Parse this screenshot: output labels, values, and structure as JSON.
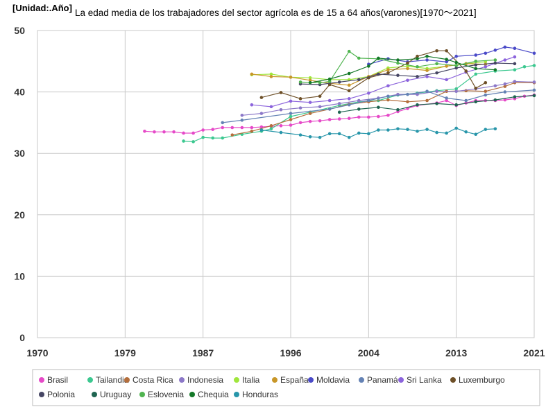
{
  "chart_data": {
    "type": "line",
    "unit_label": "[Unidad:.Año]",
    "title": "La edad media de los trabajadores del sector agrícola es de 15 a 64 años(varones)[1970〜2021]",
    "xlim": [
      1970,
      2021
    ],
    "ylim": [
      0,
      50
    ],
    "x_ticks": [
      1970,
      1979,
      1987,
      1996,
      2004,
      2013,
      2021
    ],
    "y_ticks": [
      0,
      10,
      20,
      30,
      40,
      50
    ],
    "grid": true,
    "legend_position": "bottom",
    "series": [
      {
        "name": "Brasil",
        "color": "#e64ac8",
        "points": [
          [
            1981,
            33.6
          ],
          [
            1982,
            33.5
          ],
          [
            1983,
            33.5
          ],
          [
            1984,
            33.5
          ],
          [
            1985,
            33.3
          ],
          [
            1986,
            33.3
          ],
          [
            1987,
            33.8
          ],
          [
            1988,
            33.9
          ],
          [
            1989,
            34.2
          ],
          [
            1990,
            34.2
          ],
          [
            1991,
            34.2
          ],
          [
            1992,
            34.2
          ],
          [
            1993,
            34.3
          ],
          [
            1994,
            34.4
          ],
          [
            1995,
            34.5
          ],
          [
            1996,
            34.6
          ],
          [
            1997,
            35.0
          ],
          [
            1998,
            35.2
          ],
          [
            1999,
            35.3
          ],
          [
            2000,
            35.5
          ],
          [
            2001,
            35.6
          ],
          [
            2002,
            35.7
          ],
          [
            2003,
            35.9
          ],
          [
            2004,
            35.9
          ],
          [
            2005,
            36.0
          ],
          [
            2006,
            36.2
          ],
          [
            2007,
            36.8
          ],
          [
            2008,
            37.3
          ],
          [
            2009,
            37.8
          ],
          [
            2011,
            38.2
          ],
          [
            2012,
            38.6
          ],
          [
            2013,
            37.8
          ],
          [
            2014,
            38.2
          ],
          [
            2015,
            38.6
          ],
          [
            2016,
            38.6
          ],
          [
            2017,
            38.6
          ],
          [
            2018,
            38.7
          ],
          [
            2019,
            38.9
          ],
          [
            2020,
            39.3
          ],
          [
            2021,
            39.5
          ]
        ]
      },
      {
        "name": "Tailandia",
        "color": "#3cc890",
        "points": [
          [
            1985,
            32.0
          ],
          [
            1986,
            31.9
          ],
          [
            1987,
            32.6
          ],
          [
            1988,
            32.5
          ],
          [
            1989,
            32.5
          ],
          [
            1991,
            33.1
          ],
          [
            1993,
            33.6
          ],
          [
            1994,
            34.0
          ],
          [
            1996,
            36.0
          ],
          [
            1998,
            36.7
          ],
          [
            2001,
            37.8
          ],
          [
            2003,
            38.4
          ],
          [
            2005,
            38.6
          ],
          [
            2007,
            39.5
          ],
          [
            2009,
            39.8
          ],
          [
            2011,
            40.2
          ],
          [
            2013,
            40.5
          ],
          [
            2015,
            42.9
          ],
          [
            2017,
            43.4
          ],
          [
            2019,
            43.6
          ],
          [
            2020,
            44.1
          ],
          [
            2021,
            44.3
          ]
        ]
      },
      {
        "name": "Costa Rica",
        "color": "#b46e3c",
        "points": [
          [
            1990,
            33.0
          ],
          [
            1992,
            33.6
          ],
          [
            1994,
            34.5
          ],
          [
            1996,
            35.5
          ],
          [
            1998,
            36.5
          ],
          [
            2000,
            37.2
          ],
          [
            2002,
            38.0
          ],
          [
            2004,
            38.4
          ],
          [
            2006,
            38.7
          ],
          [
            2008,
            38.4
          ],
          [
            2010,
            38.6
          ],
          [
            2012,
            40.1
          ],
          [
            2014,
            40.2
          ],
          [
            2016,
            40.1
          ],
          [
            2018,
            40.9
          ],
          [
            2019,
            41.5
          ],
          [
            2021,
            41.5
          ]
        ]
      },
      {
        "name": "Indonesia",
        "color": "#8c78c8",
        "points": [
          [
            1991,
            36.2
          ],
          [
            1993,
            36.5
          ],
          [
            1995,
            37.1
          ],
          [
            1997,
            37.4
          ],
          [
            1999,
            37.6
          ],
          [
            2001,
            38.1
          ],
          [
            2003,
            38.6
          ],
          [
            2005,
            39.0
          ],
          [
            2007,
            39.6
          ],
          [
            2009,
            39.6
          ],
          [
            2011,
            40.1
          ],
          [
            2013,
            40.1
          ],
          [
            2015,
            40.5
          ],
          [
            2017,
            41.0
          ],
          [
            2018,
            41.3
          ],
          [
            2019,
            41.7
          ],
          [
            2021,
            41.6
          ]
        ]
      },
      {
        "name": "Italia",
        "color": "#a0e63c",
        "points": [
          [
            1992,
            42.8
          ],
          [
            1994,
            42.9
          ],
          [
            1996,
            42.4
          ],
          [
            1998,
            42.3
          ],
          [
            2000,
            42.0
          ],
          [
            2002,
            42.0
          ],
          [
            2004,
            42.5
          ],
          [
            2006,
            43.9
          ],
          [
            2008,
            44.2
          ],
          [
            2010,
            43.8
          ],
          [
            2012,
            44.2
          ],
          [
            2014,
            44.6
          ],
          [
            2016,
            44.9
          ]
        ]
      },
      {
        "name": "España",
        "color": "#c89628",
        "points": [
          [
            1992,
            42.9
          ],
          [
            1994,
            42.5
          ],
          [
            1996,
            42.4
          ],
          [
            1998,
            41.9
          ],
          [
            2000,
            41.4
          ],
          [
            2002,
            41.1
          ],
          [
            2004,
            42.5
          ],
          [
            2006,
            43.6
          ],
          [
            2008,
            43.8
          ],
          [
            2010,
            43.5
          ],
          [
            2012,
            44.2
          ],
          [
            2014,
            44.6
          ],
          [
            2016,
            44.5
          ]
        ]
      },
      {
        "name": "Moldavia",
        "color": "#4a4ac8",
        "points": [
          [
            2004,
            44.5
          ],
          [
            2006,
            45.4
          ],
          [
            2008,
            44.9
          ],
          [
            2010,
            45.2
          ],
          [
            2012,
            44.9
          ],
          [
            2013,
            45.8
          ],
          [
            2015,
            46.0
          ],
          [
            2016,
            46.3
          ],
          [
            2017,
            46.8
          ],
          [
            2018,
            47.3
          ],
          [
            2019,
            47.1
          ],
          [
            2021,
            46.3
          ]
        ]
      },
      {
        "name": "Panamá",
        "color": "#6482b4",
        "points": [
          [
            1989,
            35.0
          ],
          [
            1991,
            35.4
          ],
          [
            1996,
            36.5
          ],
          [
            2000,
            37.2
          ],
          [
            2002,
            37.9
          ],
          [
            2004,
            38.6
          ],
          [
            2006,
            39.3
          ],
          [
            2008,
            39.6
          ],
          [
            2010,
            40.1
          ],
          [
            2012,
            39.0
          ],
          [
            2014,
            38.6
          ],
          [
            2016,
            39.5
          ],
          [
            2018,
            40.0
          ],
          [
            2021,
            40.3
          ]
        ]
      },
      {
        "name": "Sri Lanka",
        "color": "#8c64dc",
        "points": [
          [
            1992,
            37.9
          ],
          [
            1994,
            37.6
          ],
          [
            1996,
            38.5
          ],
          [
            1998,
            38.3
          ],
          [
            2000,
            38.6
          ],
          [
            2002,
            38.9
          ],
          [
            2004,
            39.8
          ],
          [
            2006,
            41.0
          ],
          [
            2008,
            41.9
          ],
          [
            2010,
            42.5
          ],
          [
            2012,
            42.0
          ],
          [
            2014,
            43.2
          ],
          [
            2016,
            44.1
          ],
          [
            2018,
            45.2
          ],
          [
            2019,
            45.7
          ]
        ]
      },
      {
        "name": "Luxemburgo",
        "color": "#6e5028",
        "points": [
          [
            1993,
            39.1
          ],
          [
            1995,
            39.9
          ],
          [
            1997,
            38.9
          ],
          [
            1999,
            39.3
          ],
          [
            2000,
            41.2
          ],
          [
            2002,
            40.2
          ],
          [
            2004,
            42.3
          ],
          [
            2006,
            43.1
          ],
          [
            2008,
            44.7
          ],
          [
            2009,
            45.8
          ],
          [
            2011,
            46.7
          ],
          [
            2012,
            46.7
          ],
          [
            2014,
            43.4
          ],
          [
            2015,
            40.6
          ],
          [
            2016,
            41.5
          ]
        ]
      },
      {
        "name": "Polonia",
        "color": "#464664",
        "points": [
          [
            1997,
            41.3
          ],
          [
            1999,
            41.2
          ],
          [
            2001,
            41.6
          ],
          [
            2003,
            42.0
          ],
          [
            2005,
            42.9
          ],
          [
            2007,
            42.7
          ],
          [
            2009,
            42.5
          ],
          [
            2011,
            43.1
          ],
          [
            2013,
            43.9
          ],
          [
            2015,
            44.4
          ],
          [
            2017,
            44.7
          ],
          [
            2019,
            44.6
          ]
        ]
      },
      {
        "name": "Uruguay",
        "color": "#1e6450",
        "points": [
          [
            2001,
            36.7
          ],
          [
            2003,
            37.2
          ],
          [
            2005,
            37.5
          ],
          [
            2007,
            37.1
          ],
          [
            2009,
            37.9
          ],
          [
            2011,
            38.1
          ],
          [
            2013,
            37.9
          ],
          [
            2015,
            38.4
          ],
          [
            2017,
            38.7
          ],
          [
            2019,
            39.2
          ],
          [
            2021,
            39.4
          ]
        ]
      },
      {
        "name": "Eslovenia",
        "color": "#50b450",
        "points": [
          [
            1997,
            41.6
          ],
          [
            1999,
            41.5
          ],
          [
            2000,
            41.7
          ],
          [
            2002,
            46.6
          ],
          [
            2003,
            45.5
          ],
          [
            2005,
            45.4
          ],
          [
            2007,
            44.7
          ],
          [
            2009,
            44.1
          ],
          [
            2011,
            44.6
          ],
          [
            2013,
            44.3
          ],
          [
            2015,
            45.0
          ],
          [
            2017,
            45.2
          ]
        ]
      },
      {
        "name": "Chequia",
        "color": "#147828",
        "points": [
          [
            1998,
            41.5
          ],
          [
            2000,
            42.1
          ],
          [
            2002,
            43.0
          ],
          [
            2004,
            44.2
          ],
          [
            2005,
            45.5
          ],
          [
            2007,
            45.2
          ],
          [
            2009,
            45.4
          ],
          [
            2010,
            45.8
          ],
          [
            2012,
            45.3
          ],
          [
            2013,
            44.8
          ],
          [
            2015,
            43.8
          ],
          [
            2017,
            43.6
          ]
        ]
      },
      {
        "name": "Honduras",
        "color": "#2896aa",
        "points": [
          [
            1993,
            33.8
          ],
          [
            1995,
            33.4
          ],
          [
            1997,
            33.0
          ],
          [
            1998,
            32.7
          ],
          [
            1999,
            32.6
          ],
          [
            2000,
            33.2
          ],
          [
            2001,
            33.2
          ],
          [
            2002,
            32.6
          ],
          [
            2003,
            33.3
          ],
          [
            2004,
            33.2
          ],
          [
            2005,
            33.8
          ],
          [
            2006,
            33.8
          ],
          [
            2007,
            34.0
          ],
          [
            2008,
            33.9
          ],
          [
            2009,
            33.6
          ],
          [
            2010,
            33.9
          ],
          [
            2011,
            33.4
          ],
          [
            2012,
            33.3
          ],
          [
            2013,
            34.1
          ],
          [
            2014,
            33.5
          ],
          [
            2015,
            33.1
          ],
          [
            2016,
            33.9
          ],
          [
            2017,
            34.0
          ]
        ]
      }
    ]
  }
}
